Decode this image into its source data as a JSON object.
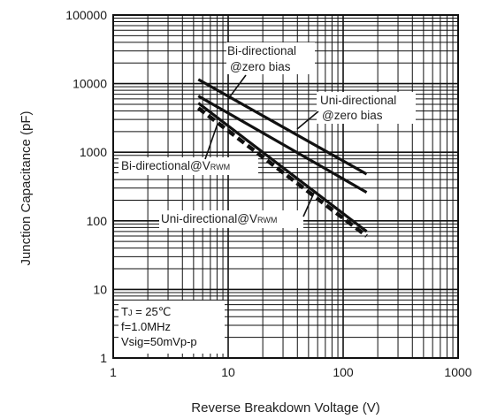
{
  "chart_data": {
    "type": "line",
    "title": "",
    "xlabel": "Reverse Breakdown Voltage (V)",
    "ylabel": "Junction Capacitance (pF)",
    "x_scale": "log",
    "y_scale": "log",
    "xlim": [
      1,
      1000
    ],
    "ylim": [
      1,
      100000
    ],
    "grid": true,
    "x_ticks": [
      "1",
      "10",
      "100",
      "1000"
    ],
    "y_ticks": [
      "1",
      "10",
      "100",
      "1000",
      "10000",
      "100000"
    ],
    "series": [
      {
        "name": "Bi-directional @zero bias",
        "style": "solid",
        "x": [
          5.5,
          160
        ],
        "y": [
          11500,
          480
        ]
      },
      {
        "name": "Uni-directional @zero bias",
        "style": "solid",
        "x": [
          5.5,
          160
        ],
        "y": [
          6600,
          260
        ]
      },
      {
        "name": "Bi-directional@VRWM",
        "style": "solid",
        "x": [
          5.5,
          160
        ],
        "y": [
          5200,
          70
        ]
      },
      {
        "name": "Uni-directional@VRWM",
        "style": "dashed",
        "x": [
          5.5,
          160
        ],
        "y": [
          4400,
          60
        ]
      }
    ],
    "annotations": {
      "bi_zero": {
        "line1": "Bi-directional",
        "line2": "@zero bias"
      },
      "uni_zero": {
        "line1": "Uni-directional",
        "line2": "@zero bias"
      },
      "bi_vrwm": {
        "text": "Bi-directional@V",
        "sub": "RWM"
      },
      "uni_vrwm": {
        "text": "Uni-directional@V",
        "sub": "RWM"
      }
    },
    "conditions": {
      "line1_prefix": "T",
      "line1_sub": "J",
      "line1_suffix": " = 25℃",
      "line2": "f=1.0MHz",
      "line3": "Vsig=50mVp-p"
    },
    "colors": {
      "line": "#111111",
      "grid": "#111111",
      "axis": "#111111",
      "text": "#222222"
    }
  }
}
